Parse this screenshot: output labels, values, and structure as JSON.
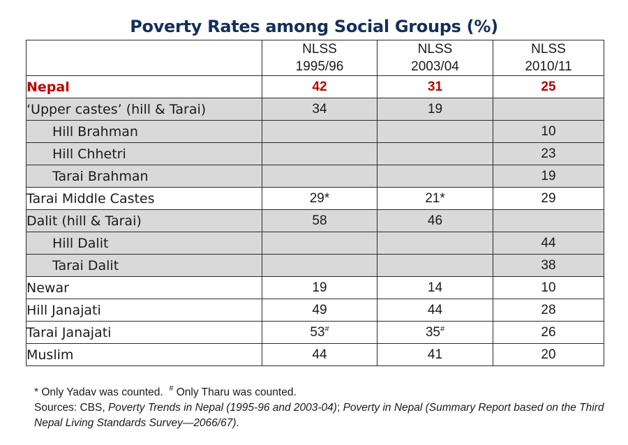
{
  "title": "Poverty Rates among Social Groups (%)",
  "table": {
    "columns": [
      {
        "line1": "NLSS",
        "line2": "1995/96"
      },
      {
        "line1": "NLSS",
        "line2": "2003/04"
      },
      {
        "line1": "NLSS",
        "line2": "2010/11"
      }
    ],
    "rows": [
      {
        "label": "Nepal",
        "values": [
          "42",
          "31",
          "25"
        ],
        "marks": [
          "",
          "",
          ""
        ],
        "style": "total",
        "indent": false
      },
      {
        "label": "‘Upper castes’ (hill & Tarai)",
        "values": [
          "34",
          "19",
          ""
        ],
        "marks": [
          "",
          "",
          ""
        ],
        "style": "shaded",
        "indent": false
      },
      {
        "label": "Hill Brahman",
        "values": [
          "",
          "",
          "10"
        ],
        "marks": [
          "",
          "",
          ""
        ],
        "style": "shaded",
        "indent": true
      },
      {
        "label": "Hill Chhetri",
        "values": [
          "",
          "",
          "23"
        ],
        "marks": [
          "",
          "",
          ""
        ],
        "style": "shaded",
        "indent": true
      },
      {
        "label": "Tarai Brahman",
        "values": [
          "",
          "",
          "19"
        ],
        "marks": [
          "",
          "",
          ""
        ],
        "style": "shaded",
        "indent": true
      },
      {
        "label": "Tarai Middle Castes",
        "values": [
          "29",
          "21",
          "29"
        ],
        "marks": [
          "*",
          "*",
          ""
        ],
        "style": "plain",
        "indent": false
      },
      {
        "label": "Dalit (hill & Tarai)",
        "values": [
          "58",
          "46",
          ""
        ],
        "marks": [
          "",
          "",
          ""
        ],
        "style": "shaded",
        "indent": false
      },
      {
        "label": "Hill Dalit",
        "values": [
          "",
          "",
          "44"
        ],
        "marks": [
          "",
          "",
          ""
        ],
        "style": "shaded",
        "indent": true
      },
      {
        "label": "Tarai Dalit",
        "values": [
          "",
          "",
          "38"
        ],
        "marks": [
          "",
          "",
          ""
        ],
        "style": "shaded",
        "indent": true
      },
      {
        "label": "Newar",
        "values": [
          "19",
          "14",
          "10"
        ],
        "marks": [
          "",
          "",
          ""
        ],
        "style": "plain",
        "indent": false
      },
      {
        "label": "Hill Janajati",
        "values": [
          "49",
          "44",
          "28"
        ],
        "marks": [
          "",
          "",
          ""
        ],
        "style": "plain",
        "indent": false
      },
      {
        "label": "Tarai Janajati",
        "values": [
          "53",
          "35",
          "26"
        ],
        "marks": [
          "#",
          "#",
          ""
        ],
        "style": "plain",
        "indent": false
      },
      {
        "label": "Muslim",
        "values": [
          "44",
          "41",
          "20"
        ],
        "marks": [
          "",
          "",
          ""
        ],
        "style": "plain",
        "indent": false
      }
    ]
  },
  "notes": {
    "footnote_star": "* Only Yadav was counted.",
    "footnote_hash_mark": "#",
    "footnote_hash": " Only Tharu was counted.",
    "sources_prefix": "Sources: CBS, ",
    "source1": "Poverty Trends in Nepal (1995-96 and 2003-04)",
    "separator": "; ",
    "source2": "Poverty in Nepal (Summary Report based on the Third Nepal Living Standards Survey—2066/67)",
    "suffix": "."
  },
  "colors": {
    "title": "#14305a",
    "highlight": "#c00000",
    "shade": "#d9d9d9",
    "border": "#2a2a2a"
  }
}
